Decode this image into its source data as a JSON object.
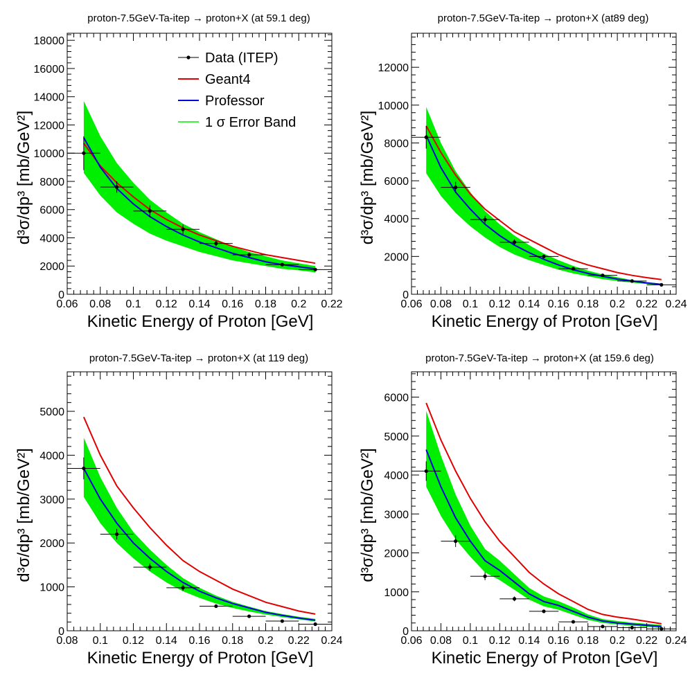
{
  "legend": {
    "data_label": "Data (ITEP)",
    "geant4_label": "Geant4",
    "professor_label": "Professor",
    "band_label": "1 σ Error Band"
  },
  "colors": {
    "data": "#000000",
    "geant4": "#e00000",
    "professor": "#0000dd",
    "band": "#00ee00"
  },
  "chart_data": [
    {
      "type": "line",
      "title": "proton-7.5GeV-Ta-itep → proton+X (at 59.1 deg)",
      "xlabel": "Kinetic Energy of Proton [GeV]",
      "ylabel": "d³σ/dp³ [mb/GeV²]",
      "xlim": [
        0.06,
        0.22
      ],
      "ylim": [
        0,
        18500
      ],
      "xticks": [
        0.06,
        0.08,
        0.1,
        0.12,
        0.14,
        0.16,
        0.18,
        0.2,
        0.22
      ],
      "xtick_labels": [
        "0.06",
        "0.08",
        "0.1",
        "0.12",
        "0.14",
        "0.16",
        "0.18",
        "0.2",
        "0.22"
      ],
      "yticks": [
        0,
        2000,
        4000,
        6000,
        8000,
        10000,
        12000,
        14000,
        16000,
        18000
      ],
      "ytick_labels": [
        "0",
        "2000",
        "4000",
        "6000",
        "8000",
        "10000",
        "12000",
        "14000",
        "16000",
        "18000"
      ],
      "data": {
        "x": [
          0.07,
          0.09,
          0.11,
          0.13,
          0.15,
          0.17,
          0.19,
          0.21
        ],
        "y": [
          10000,
          7600,
          5900,
          4600,
          3600,
          2800,
          2100,
          1750
        ],
        "xerr": 0.01,
        "yerr": [
          1200,
          400,
          400,
          350,
          200,
          150,
          120,
          100
        ]
      },
      "geant4": {
        "x": [
          0.07,
          0.08,
          0.09,
          0.1,
          0.11,
          0.12,
          0.13,
          0.14,
          0.15,
          0.16,
          0.17,
          0.18,
          0.19,
          0.2,
          0.21
        ],
        "y": [
          10700,
          9100,
          7900,
          6900,
          6000,
          5300,
          4700,
          4200,
          3800,
          3400,
          3100,
          2800,
          2600,
          2400,
          2200
        ]
      },
      "professor": {
        "x": [
          0.07,
          0.08,
          0.09,
          0.1,
          0.11,
          0.12,
          0.13,
          0.14,
          0.15,
          0.16,
          0.17,
          0.18,
          0.19,
          0.2,
          0.21
        ],
        "y": [
          11100,
          9000,
          7500,
          6400,
          5500,
          4800,
          4200,
          3700,
          3300,
          2900,
          2600,
          2300,
          2100,
          1950,
          1800
        ]
      },
      "band": {
        "x": [
          0.07,
          0.08,
          0.09,
          0.1,
          0.11,
          0.12,
          0.13,
          0.14,
          0.15,
          0.16,
          0.17,
          0.18,
          0.19,
          0.2,
          0.21
        ],
        "upper": [
          13700,
          11200,
          9300,
          7900,
          6700,
          5800,
          5000,
          4400,
          3900,
          3400,
          3000,
          2700,
          2400,
          2200,
          2000
        ],
        "lower": [
          8600,
          7000,
          5800,
          5000,
          4300,
          3800,
          3400,
          3000,
          2700,
          2400,
          2200,
          2000,
          1800,
          1700,
          1550
        ]
      }
    },
    {
      "type": "line",
      "title": "proton-7.5GeV-Ta-itep → proton+X (at89 deg)",
      "xlabel": "Kinetic Energy of Proton [GeV]",
      "ylabel": "d³σ/dp³ [mb/GeV²]",
      "xlim": [
        0.06,
        0.24
      ],
      "ylim": [
        0,
        13800
      ],
      "xticks": [
        0.06,
        0.08,
        0.1,
        0.12,
        0.14,
        0.16,
        0.18,
        0.2,
        0.22,
        0.24
      ],
      "xtick_labels": [
        "0.06",
        "0.08",
        "0.1",
        "0.12",
        "0.14",
        "0.16",
        "0.18",
        "0.2",
        "0.22",
        "0.24"
      ],
      "yticks": [
        0,
        2000,
        4000,
        6000,
        8000,
        10000,
        12000
      ],
      "ytick_labels": [
        "0",
        "2000",
        "4000",
        "6000",
        "8000",
        "10000",
        "12000"
      ],
      "data": {
        "x": [
          0.07,
          0.09,
          0.11,
          0.13,
          0.15,
          0.17,
          0.19,
          0.21,
          0.23
        ],
        "y": [
          8300,
          5650,
          3950,
          2750,
          2000,
          1350,
          1000,
          700,
          500
        ],
        "xerr": 0.01,
        "yerr": [
          600,
          300,
          200,
          150,
          100,
          80,
          60,
          50,
          40
        ]
      },
      "geant4": {
        "x": [
          0.07,
          0.08,
          0.09,
          0.1,
          0.11,
          0.12,
          0.13,
          0.14,
          0.15,
          0.16,
          0.17,
          0.18,
          0.19,
          0.2,
          0.21,
          0.22,
          0.23
        ],
        "y": [
          8900,
          7500,
          6300,
          5300,
          4500,
          3900,
          3300,
          2900,
          2500,
          2100,
          1800,
          1550,
          1350,
          1150,
          1000,
          880,
          780
        ]
      },
      "professor": {
        "x": [
          0.07,
          0.08,
          0.09,
          0.1,
          0.11,
          0.12,
          0.13,
          0.14,
          0.15,
          0.16,
          0.17,
          0.18,
          0.19,
          0.2,
          0.21,
          0.22,
          0.23
        ],
        "y": [
          8400,
          6700,
          5400,
          4500,
          3700,
          3100,
          2600,
          2200,
          1850,
          1550,
          1300,
          1100,
          950,
          800,
          700,
          600,
          520
        ]
      },
      "band": {
        "x": [
          0.07,
          0.08,
          0.09,
          0.1,
          0.11,
          0.12,
          0.13,
          0.14,
          0.15,
          0.16,
          0.17,
          0.18,
          0.19,
          0.2,
          0.21,
          0.22,
          0.23
        ],
        "upper": [
          9900,
          8000,
          6500,
          5400,
          4400,
          3700,
          3100,
          2600,
          2150,
          1800,
          1500,
          1250,
          1050,
          900,
          750,
          640,
          560
        ],
        "lower": [
          6400,
          5200,
          4300,
          3600,
          3000,
          2500,
          2100,
          1800,
          1550,
          1300,
          1100,
          950,
          800,
          700,
          610,
          540,
          470
        ]
      }
    },
    {
      "type": "line",
      "title": "proton-7.5GeV-Ta-itep → proton+X (at 119 deg)",
      "xlabel": "Kinetic Energy of Proton [GeV]",
      "ylabel": "d³σ/dp³ [mb/GeV²]",
      "xlim": [
        0.08,
        0.24
      ],
      "ylim": [
        0,
        5900
      ],
      "xticks": [
        0.08,
        0.1,
        0.12,
        0.14,
        0.16,
        0.18,
        0.2,
        0.22,
        0.24
      ],
      "xtick_labels": [
        "0.08",
        "0.1",
        "0.12",
        "0.14",
        "0.16",
        "0.18",
        "0.2",
        "0.22",
        "0.24"
      ],
      "yticks": [
        0,
        1000,
        2000,
        3000,
        4000,
        5000
      ],
      "ytick_labels": [
        "0",
        "1000",
        "2000",
        "3000",
        "4000",
        "5000"
      ],
      "data": {
        "x": [
          0.09,
          0.11,
          0.13,
          0.15,
          0.17,
          0.19,
          0.21,
          0.23
        ],
        "y": [
          3700,
          2200,
          1450,
          980,
          560,
          330,
          220,
          150
        ],
        "xerr": 0.01,
        "yerr": [
          250,
          120,
          80,
          70,
          40,
          30,
          20,
          15
        ]
      },
      "geant4": {
        "x": [
          0.09,
          0.1,
          0.11,
          0.12,
          0.13,
          0.14,
          0.15,
          0.16,
          0.17,
          0.18,
          0.19,
          0.2,
          0.21,
          0.22,
          0.23
        ],
        "y": [
          4870,
          4000,
          3300,
          2800,
          2350,
          1950,
          1600,
          1350,
          1150,
          950,
          800,
          650,
          550,
          450,
          380
        ]
      },
      "professor": {
        "x": [
          0.09,
          0.1,
          0.11,
          0.12,
          0.13,
          0.14,
          0.15,
          0.16,
          0.17,
          0.18,
          0.19,
          0.2,
          0.21,
          0.22,
          0.23
        ],
        "y": [
          3700,
          3000,
          2450,
          2000,
          1650,
          1350,
          1100,
          900,
          750,
          620,
          520,
          420,
          350,
          290,
          240
        ]
      },
      "band": {
        "x": [
          0.09,
          0.1,
          0.11,
          0.12,
          0.13,
          0.14,
          0.15,
          0.16,
          0.17,
          0.18,
          0.19,
          0.2,
          0.21,
          0.22,
          0.23
        ],
        "upper": [
          4400,
          3500,
          2800,
          2250,
          1850,
          1500,
          1200,
          980,
          800,
          660,
          550,
          450,
          380,
          320,
          270
        ],
        "lower": [
          3050,
          2450,
          2000,
          1650,
          1350,
          1100,
          900,
          750,
          620,
          520,
          440,
          370,
          310,
          260,
          210
        ]
      }
    },
    {
      "type": "line",
      "title": "proton-7.5GeV-Ta-itep    → proton+X (at 159.6 deg)",
      "xlabel": "Kinetic Energy of Proton [GeV]",
      "ylabel": "d³σ/dp³ [mb/GeV²]",
      "xlim": [
        0.06,
        0.24
      ],
      "ylim": [
        0,
        6650
      ],
      "xticks": [
        0.06,
        0.08,
        0.1,
        0.12,
        0.14,
        0.16,
        0.18,
        0.2,
        0.22,
        0.24
      ],
      "xtick_labels": [
        "0.06",
        "0.08",
        "0.1",
        "0.12",
        "0.14",
        "0.16",
        "0.18",
        "0.2",
        "0.22",
        "0.24"
      ],
      "yticks": [
        0,
        1000,
        2000,
        3000,
        4000,
        5000,
        6000
      ],
      "ytick_labels": [
        "0",
        "1000",
        "2000",
        "3000",
        "4000",
        "5000",
        "6000"
      ],
      "data": {
        "x": [
          0.07,
          0.09,
          0.11,
          0.13,
          0.15,
          0.17,
          0.19,
          0.21,
          0.23
        ],
        "y": [
          4100,
          2300,
          1400,
          820,
          500,
          230,
          110,
          80,
          50
        ],
        "xerr": 0.01,
        "yerr": [
          250,
          150,
          100,
          60,
          40,
          25,
          15,
          10,
          8
        ]
      },
      "geant4": {
        "x": [
          0.07,
          0.08,
          0.09,
          0.1,
          0.11,
          0.12,
          0.13,
          0.14,
          0.15,
          0.16,
          0.17,
          0.18,
          0.19,
          0.2,
          0.21,
          0.22,
          0.23
        ],
        "y": [
          5850,
          4900,
          4100,
          3400,
          2800,
          2300,
          1900,
          1500,
          1200,
          950,
          750,
          550,
          420,
          350,
          300,
          240,
          180
        ]
      },
      "professor": {
        "x": [
          0.07,
          0.08,
          0.09,
          0.1,
          0.11,
          0.12,
          0.13,
          0.14,
          0.15,
          0.16,
          0.17,
          0.18,
          0.19,
          0.2,
          0.21,
          0.22,
          0.23
        ],
        "y": [
          4650,
          3700,
          2900,
          2300,
          1800,
          1550,
          1250,
          950,
          750,
          650,
          500,
          350,
          250,
          200,
          170,
          140,
          110
        ]
      },
      "band": {
        "x": [
          0.07,
          0.08,
          0.09,
          0.1,
          0.11,
          0.12,
          0.13,
          0.14,
          0.15,
          0.16,
          0.17,
          0.18,
          0.19,
          0.2,
          0.21,
          0.22,
          0.23
        ],
        "upper": [
          5650,
          4500,
          3500,
          2700,
          2100,
          1800,
          1450,
          1100,
          880,
          760,
          600,
          420,
          300,
          250,
          210,
          180,
          150
        ],
        "lower": [
          3700,
          2950,
          2350,
          1900,
          1500,
          1300,
          1050,
          800,
          630,
          540,
          410,
          280,
          200,
          160,
          130,
          100,
          70
        ]
      }
    }
  ]
}
